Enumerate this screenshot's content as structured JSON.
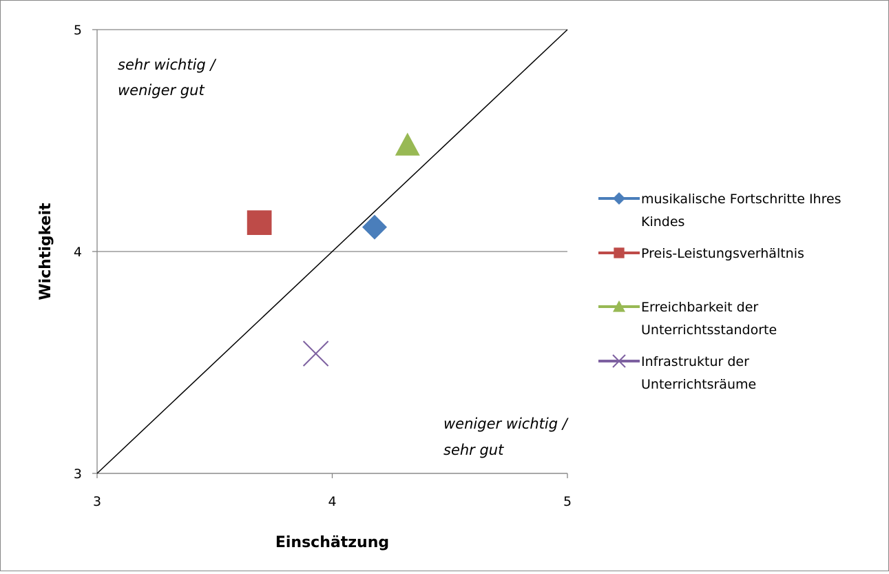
{
  "chart_data": {
    "type": "scatter",
    "title": "",
    "xlabel": "Einschätzung",
    "ylabel": "Wichtigkeit",
    "xlim": [
      3,
      5
    ],
    "ylim": [
      3,
      5
    ],
    "xticks": [
      "3",
      "4",
      "5"
    ],
    "yticks": [
      "3",
      "4",
      "5"
    ],
    "grid": "horizontal",
    "legend_position": "right",
    "reference_line": {
      "from": [
        3,
        3
      ],
      "to": [
        5,
        5
      ],
      "color": "#000000"
    },
    "annotations": {
      "top_left": [
        "sehr wichtig /",
        "weniger gut"
      ],
      "bottom_right": [
        "weniger wichtig /",
        "sehr  gut"
      ]
    },
    "series": [
      {
        "name": [
          "musikalische Fortschritte Ihres",
          "Kindes"
        ],
        "marker": "diamond",
        "color": "#4a7ebb",
        "x": 4.18,
        "y": 4.11
      },
      {
        "name": [
          "Preis-Leistungsverhältnis"
        ],
        "marker": "square",
        "color": "#be4b48",
        "x": 3.69,
        "y": 4.13
      },
      {
        "name": [
          "Erreichbarkeit der",
          "Unterrichtsstandorte"
        ],
        "marker": "triangle",
        "color": "#98b954",
        "x": 4.32,
        "y": 4.48
      },
      {
        "name": [
          "Infrastruktur der",
          "Unterrichtsräume"
        ],
        "marker": "x",
        "color": "#7d60a0",
        "x": 3.93,
        "y": 3.54
      }
    ]
  }
}
